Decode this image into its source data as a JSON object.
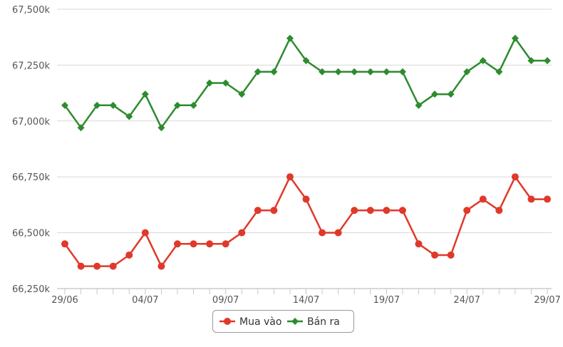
{
  "chart_data": {
    "type": "line",
    "x": [
      "29/06",
      "30/06",
      "01/07",
      "02/07",
      "03/07",
      "04/07",
      "05/07",
      "06/07",
      "07/07",
      "08/07",
      "09/07",
      "10/07",
      "11/07",
      "12/07",
      "13/07",
      "14/07",
      "15/07",
      "16/07",
      "17/07",
      "18/07",
      "19/07",
      "20/07",
      "21/07",
      "22/07",
      "23/07",
      "24/07",
      "25/07",
      "26/07",
      "27/07",
      "28/07",
      "29/07"
    ],
    "tick_labels": [
      "29/06",
      "04/07",
      "09/07",
      "14/07",
      "19/07",
      "24/07",
      "29/07"
    ],
    "tick_indices": [
      0,
      5,
      10,
      15,
      20,
      25,
      30
    ],
    "series": [
      {
        "name": "Mua vào",
        "color": "#e0392b",
        "marker": "circle",
        "values": [
          66450,
          66350,
          66350,
          66350,
          66400,
          66500,
          66350,
          66450,
          66450,
          66450,
          66450,
          66500,
          66600,
          66600,
          66750,
          66650,
          66500,
          66500,
          66600,
          66600,
          66600,
          66600,
          66450,
          66400,
          66400,
          66600,
          66650,
          66600,
          66750,
          66650,
          66650
        ]
      },
      {
        "name": "Bán ra",
        "color": "#2e8b2e",
        "marker": "diamond",
        "values": [
          67070,
          66970,
          67070,
          67070,
          67020,
          67120,
          66970,
          67070,
          67070,
          67170,
          67170,
          67120,
          67220,
          67220,
          67370,
          67270,
          67220,
          67220,
          67220,
          67220,
          67220,
          67220,
          67070,
          67120,
          67120,
          67220,
          67270,
          67220,
          67370,
          67270,
          67270
        ]
      }
    ],
    "ylim": [
      66250,
      67500
    ],
    "y_ticks": [
      66250,
      66500,
      66750,
      67000,
      67250,
      67500
    ],
    "y_tick_labels": [
      "66,250k",
      "66,500k",
      "66,750k",
      "67,000k",
      "67,250k",
      "67,500k"
    ],
    "grid": "horizontal",
    "legend": "bottom-center",
    "title": "",
    "xlabel": "",
    "ylabel": ""
  }
}
